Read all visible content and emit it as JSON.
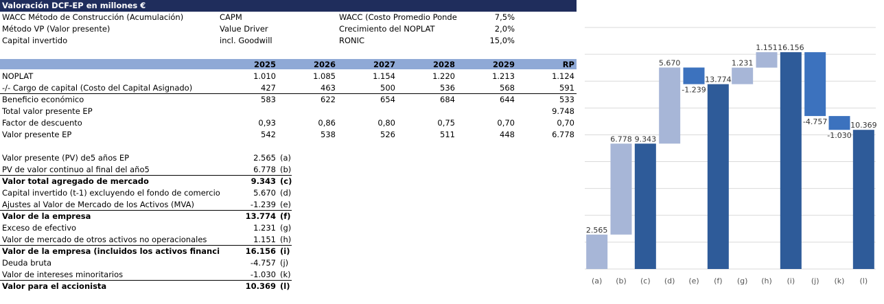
{
  "header": {
    "title": "Valoración DCF-EP en millones €"
  },
  "params": [
    {
      "label": "WACC Método de Construcción (Acumulación)",
      "value": "CAPM",
      "label2": "WACC (Costo Promedio Ponde",
      "value2": "7,5%"
    },
    {
      "label": "Método VP (Valor presente)",
      "value": "Value Driver",
      "label2": "Crecimiento del NOPLAT",
      "value2": "2,0%"
    },
    {
      "label": "Capital invertido",
      "value": "incl. Goodwill",
      "label2": "RONIC",
      "value2": "15,0%"
    }
  ],
  "years": [
    "2025",
    "2026",
    "2027",
    "2028",
    "2029",
    "RP"
  ],
  "rows": [
    {
      "label": "NOPLAT",
      "values": [
        "1.010",
        "1.085",
        "1.154",
        "1.220",
        "1.213",
        "1.124"
      ]
    },
    {
      "label": "-/- Cargo de capital  (Costo del Capital Asignado)",
      "values": [
        "427",
        "463",
        "500",
        "536",
        "568",
        "591"
      ]
    },
    {
      "label": "Beneficio económico",
      "values": [
        "583",
        "622",
        "654",
        "684",
        "644",
        "533"
      ]
    },
    {
      "label": "Total valor presente  EP",
      "values": [
        "",
        "",
        "",
        "",
        "",
        "9.748"
      ]
    },
    {
      "label": "Factor de descuento",
      "values": [
        "0,93",
        "0,86",
        "0,80",
        "0,75",
        "0,70",
        "0,70"
      ]
    },
    {
      "label": "Valor presente EP",
      "values": [
        "542",
        "538",
        "526",
        "511",
        "448",
        "6.778"
      ]
    }
  ],
  "summary": [
    {
      "label": "Valor presente (PV) de5 años EP",
      "value": "2.565",
      "tag": "(a)"
    },
    {
      "label": "PV de valor continuo al final del año5",
      "value": "6.778",
      "tag": "(b)"
    },
    {
      "label": "Valor total agregado  de mercado",
      "value": "9.343",
      "tag": "(c)"
    },
    {
      "label": "Capital invertido (t-1) excluyendo el fondo de comercio",
      "value": "5.670",
      "tag": "(d)"
    },
    {
      "label": "Ajustes al Valor de Mercado de los Activos (MVA)",
      "value": "-1.239",
      "tag": "(e)"
    },
    {
      "label": "Valor de la empresa",
      "value": "13.774",
      "tag": "(f)"
    },
    {
      "label": "Exceso de efectivo",
      "value": "1.231",
      "tag": "(g)"
    },
    {
      "label": "Valor de mercado de otros activos no operacionales",
      "value": "1.151",
      "tag": "(h)"
    },
    {
      "label": "Valor de la empresa (incluidos los activos financi",
      "value": "16.156",
      "tag": "(i)"
    },
    {
      "label": "Deuda bruta",
      "value": "-4.757",
      "tag": "(j)"
    },
    {
      "label": "Valor de intereses minoritarios",
      "value": "-1.030",
      "tag": "(k)"
    },
    {
      "label": "Valor para el accionista",
      "value": "10.369",
      "tag": "(l)"
    }
  ],
  "colors": {
    "light": "#a7b6d7",
    "dark": "#2e5b99",
    "neg": "#3c72be",
    "header": "#1f2d5c",
    "yearbar": "#8fa9d6"
  },
  "chart_data": {
    "type": "waterfall",
    "categories": [
      "(a)",
      "(b)",
      "(c)",
      "(d)",
      "(e)",
      "(f)",
      "(g)",
      "(h)",
      "(i)",
      "(j)",
      "(k)",
      "(l)"
    ],
    "values": [
      2565,
      6778,
      9343,
      5670,
      -1239,
      13774,
      1231,
      1151,
      16156,
      -4757,
      -1030,
      10369
    ],
    "labels": [
      "2.565",
      "6.778",
      "9.343",
      "5.670",
      "-1.239",
      "13.774",
      "1.231",
      "1.151",
      "16.156",
      "-4.757",
      "-1.030",
      "10.369"
    ],
    "kind": [
      "delta",
      "delta",
      "total",
      "delta",
      "delta",
      "total",
      "delta",
      "delta",
      "total",
      "delta",
      "delta",
      "total"
    ],
    "ylim": [
      0,
      18000
    ],
    "grid": true
  }
}
